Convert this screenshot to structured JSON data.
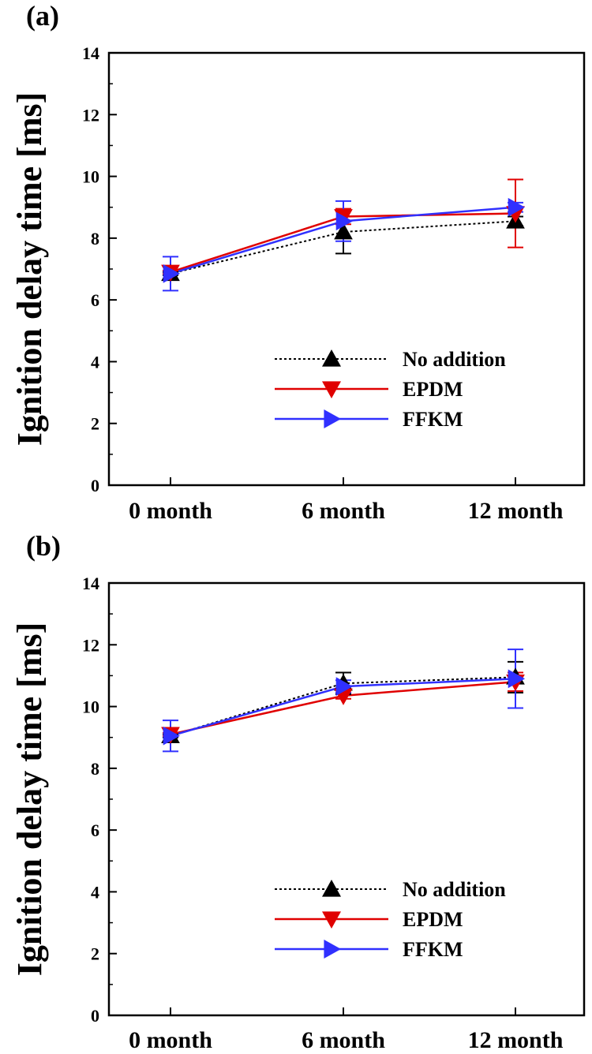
{
  "chart_data": [
    {
      "panel_label": "(a)",
      "type": "line",
      "categories": [
        "0 month",
        "6 month",
        "12 month"
      ],
      "ylabel": "Ignition delay time [ms]",
      "xlabel": "",
      "ylim": [
        0,
        14
      ],
      "yticks": [
        0,
        2,
        4,
        6,
        8,
        10,
        12,
        14
      ],
      "grid": false,
      "legend_position": "lower-right",
      "series": [
        {
          "name": "No addition",
          "color": "#000000",
          "marker": "triangle-up",
          "dashed": true,
          "values": [
            6.85,
            8.2,
            8.55
          ],
          "errors": [
            0.05,
            0.7,
            0.15
          ]
        },
        {
          "name": "EPDM",
          "color": "#e00000",
          "marker": "triangle-down",
          "dashed": false,
          "values": [
            6.9,
            8.7,
            8.8
          ],
          "errors": [
            0.05,
            0.25,
            1.1
          ]
        },
        {
          "name": "FFKM",
          "color": "#3030ff",
          "marker": "triangle-right",
          "dashed": false,
          "values": [
            6.85,
            8.55,
            9.0
          ],
          "errors": [
            0.55,
            0.65,
            0.15
          ]
        }
      ]
    },
    {
      "panel_label": "(b)",
      "type": "line",
      "categories": [
        "0 month",
        "6 month",
        "12 month"
      ],
      "ylabel": "Ignition delay time [ms]",
      "xlabel": "",
      "ylim": [
        0,
        14
      ],
      "yticks": [
        0,
        2,
        4,
        6,
        8,
        10,
        12,
        14
      ],
      "grid": false,
      "legend_position": "lower-right",
      "series": [
        {
          "name": "No addition",
          "color": "#000000",
          "marker": "triangle-up",
          "dashed": true,
          "values": [
            9.05,
            10.75,
            10.95
          ],
          "errors": [
            0.05,
            0.35,
            0.5
          ]
        },
        {
          "name": "EPDM",
          "color": "#e00000",
          "marker": "triangle-down",
          "dashed": false,
          "values": [
            9.1,
            10.35,
            10.8
          ],
          "errors": [
            0.05,
            0.1,
            0.3
          ]
        },
        {
          "name": "FFKM",
          "color": "#3030ff",
          "marker": "triangle-right",
          "dashed": false,
          "values": [
            9.05,
            10.65,
            10.9
          ],
          "errors": [
            0.5,
            0.2,
            0.95
          ]
        }
      ]
    }
  ]
}
